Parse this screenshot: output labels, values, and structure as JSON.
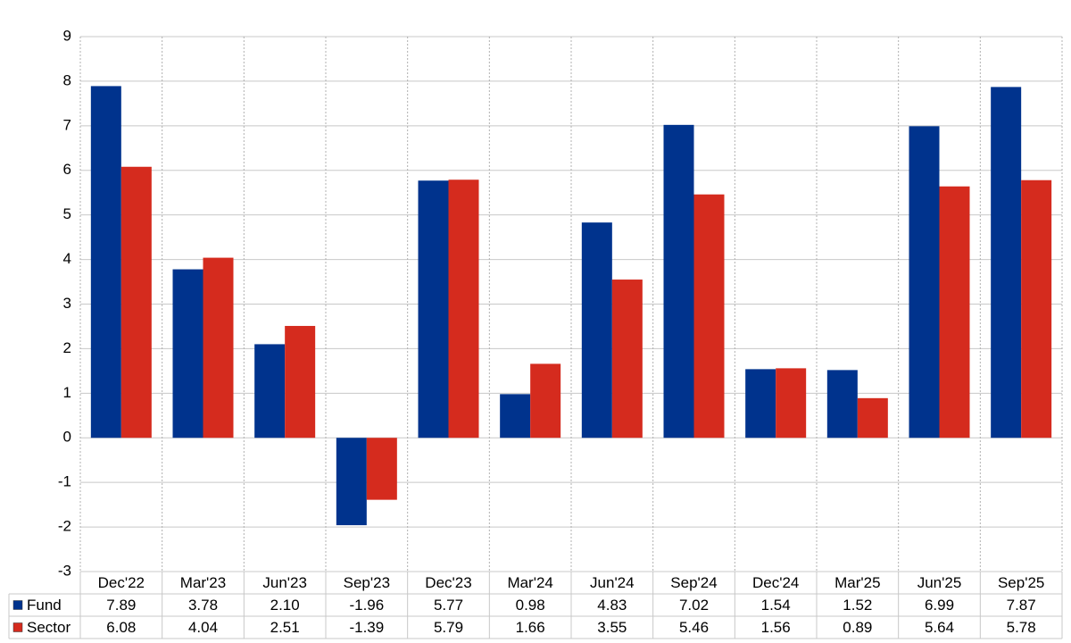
{
  "chart_data": {
    "type": "bar",
    "categories": [
      "Dec'22",
      "Mar'23",
      "Jun'23",
      "Sep'23",
      "Dec'23",
      "Mar'24",
      "Jun'24",
      "Sep'24",
      "Dec'24",
      "Mar'25",
      "Jun'25",
      "Sep'25"
    ],
    "series": [
      {
        "name": "Fund",
        "color": "#00338d",
        "values": [
          7.89,
          3.78,
          2.1,
          -1.96,
          5.77,
          0.98,
          4.83,
          7.02,
          1.54,
          1.52,
          6.99,
          7.87
        ],
        "value_labels": [
          "7.89",
          "3.78",
          "2.10",
          "-1.96",
          "5.77",
          "0.98",
          "4.83",
          "7.02",
          "1.54",
          "1.52",
          "6.99",
          "7.87"
        ]
      },
      {
        "name": "Sector",
        "color": "#d52b1e",
        "values": [
          6.08,
          4.04,
          2.51,
          -1.39,
          5.79,
          1.66,
          3.55,
          5.46,
          1.56,
          0.89,
          5.64,
          5.78
        ],
        "value_labels": [
          "6.08",
          "4.04",
          "2.51",
          "-1.39",
          "5.79",
          "1.66",
          "3.55",
          "5.46",
          "1.56",
          "0.89",
          "5.64",
          "5.78"
        ]
      }
    ],
    "ylim": [
      -3,
      9
    ],
    "yticks": [
      -3,
      -2,
      -1,
      0,
      1,
      2,
      3,
      4,
      5,
      6,
      7,
      8,
      9
    ],
    "grid": true,
    "negative_color": "#e60000"
  }
}
